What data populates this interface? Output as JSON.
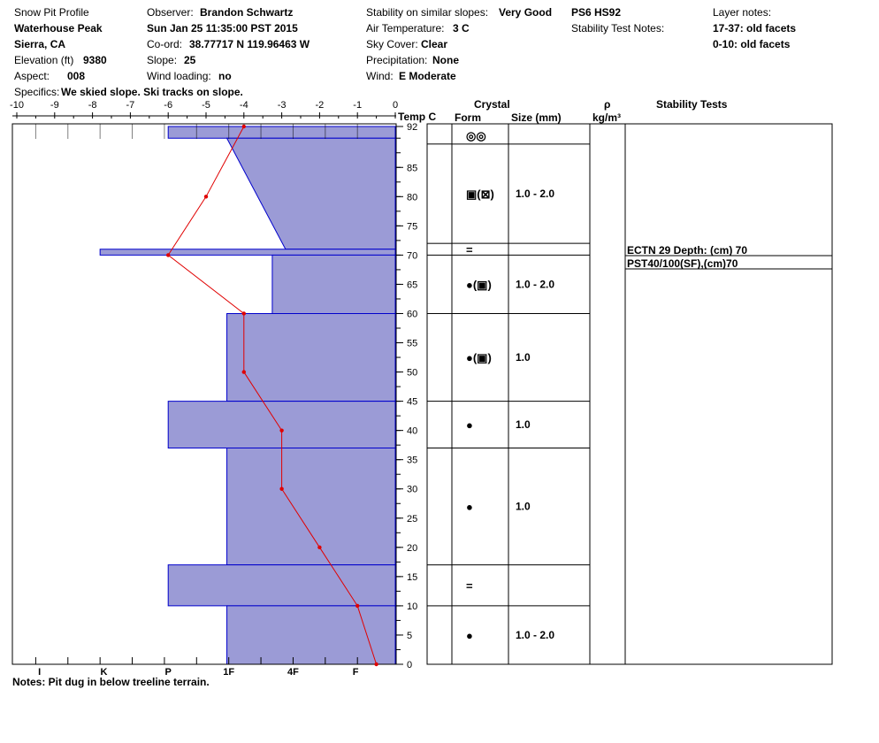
{
  "header": {
    "title": "Snow Pit Profile",
    "location": "Waterhouse Peak",
    "region": "Sierra, CA",
    "elevation_label": "Elevation (ft)",
    "elevation_value": "9380",
    "aspect_label": "Aspect:",
    "aspect_value": "008",
    "specifics_label": "Specifics:",
    "specifics_value": "We skied slope. Ski tracks on slope.",
    "observer_label": "Observer:",
    "observer_value": "Brandon Schwartz",
    "datetime": "Sun Jan 25 11:35:00 PST 2015",
    "coord_label": "Co-ord:",
    "coord_value": "38.77717 N 119.96463 W",
    "slope_label": "Slope:",
    "slope_value": "25",
    "wind_loading_label": "Wind loading:",
    "wind_loading_value": "no",
    "stability_label": "Stability on similar slopes:",
    "stability_value": "Very Good",
    "air_temp_label": "Air Temperature:",
    "air_temp_value": "3 C",
    "sky_label": "Sky Cover:",
    "sky_value": "Clear",
    "precip_label": "Precipitation:",
    "precip_value": "None",
    "wind_label": "Wind:",
    "wind_value": "E Moderate",
    "ps_value": "PS6 HS92",
    "stability_notes_label": "Stability Test Notes:",
    "layer_notes_label": "Layer notes:",
    "layer_note_1": "17-37: old facets",
    "layer_note_2": "0-10: old facets"
  },
  "table": {
    "crystal_header": "Crystal",
    "form_header": "Form",
    "size_header": "Size (mm)",
    "rho_header": "ρ",
    "density_unit": "kg/m³",
    "stability_header": "Stability Tests",
    "stability_tests": [
      "ECTN 29   Depth: (cm) 70",
      "PST40/100(SF),(cm)70"
    ],
    "layers": [
      {
        "top": 92,
        "bottom": 89,
        "form": "◎◎",
        "size": ""
      },
      {
        "top": 89,
        "bottom": 72,
        "form": "▣(⊠)",
        "size": "1.0 - 2.0"
      },
      {
        "top": 72,
        "bottom": 70,
        "form": "=",
        "size": ""
      },
      {
        "top": 70,
        "bottom": 60,
        "form": "●(▣)",
        "size": "1.0 - 2.0"
      },
      {
        "top": 60,
        "bottom": 45,
        "form": "●(▣)",
        "size": "1.0"
      },
      {
        "top": 45,
        "bottom": 37,
        "form": "●",
        "size": "1.0"
      },
      {
        "top": 37,
        "bottom": 17,
        "form": "●",
        "size": "1.0"
      },
      {
        "top": 17,
        "bottom": 10,
        "form": "=",
        "size": ""
      },
      {
        "top": 10,
        "bottom": 0,
        "form": "●",
        "size": "1.0 - 2.0"
      }
    ]
  },
  "notes": "Notes:  Pit dug in below treeline terrain.",
  "colors": {
    "layer_fill": "#9b9bd6",
    "layer_stroke": "#0000cc",
    "temp_line": "#e00000"
  },
  "chart_data": {
    "type": "line",
    "temp_axis_label": "Temp C",
    "temp_ticks": [
      -10,
      -9,
      -8,
      -7,
      -6,
      -5,
      -4,
      -3,
      -2,
      -1,
      0
    ],
    "hardness_ticks": [
      "I",
      "K",
      "P",
      "1F",
      "4F",
      "F"
    ],
    "height_ticks": [
      92,
      85,
      80,
      75,
      70,
      65,
      60,
      55,
      50,
      45,
      40,
      35,
      30,
      25,
      20,
      15,
      10,
      5,
      0
    ],
    "ylim": [
      0,
      92
    ],
    "xlim": [
      -10,
      0
    ],
    "temperature_series": {
      "x": [
        -4,
        -5,
        -6,
        -4,
        -4,
        -3,
        -3,
        -2,
        -1,
        -0.5
      ],
      "y": [
        92,
        80,
        70,
        60,
        50,
        40,
        30,
        20,
        10,
        0
      ]
    },
    "hardness_layers": [
      {
        "top": 92,
        "bottom": 90,
        "value_top": -6,
        "value_bottom": -6
      },
      {
        "top": 90,
        "bottom": 71,
        "value_top": -4.45,
        "value_bottom": -2.9
      },
      {
        "top": 71,
        "bottom": 70,
        "value_top": -7.8,
        "value_bottom": -7.8
      },
      {
        "top": 70,
        "bottom": 60,
        "value_top": -3.25,
        "value_bottom": -3.25
      },
      {
        "top": 60,
        "bottom": 45,
        "value_top": -4.45,
        "value_bottom": -4.45
      },
      {
        "top": 45,
        "bottom": 37,
        "value_top": -6,
        "value_bottom": -6
      },
      {
        "top": 37,
        "bottom": 17,
        "value_top": -4.45,
        "value_bottom": -4.45
      },
      {
        "top": 17,
        "bottom": 10,
        "value_top": -6,
        "value_bottom": -6
      },
      {
        "top": 10,
        "bottom": 0,
        "value_top": -4.45,
        "value_bottom": -4.45
      }
    ]
  }
}
